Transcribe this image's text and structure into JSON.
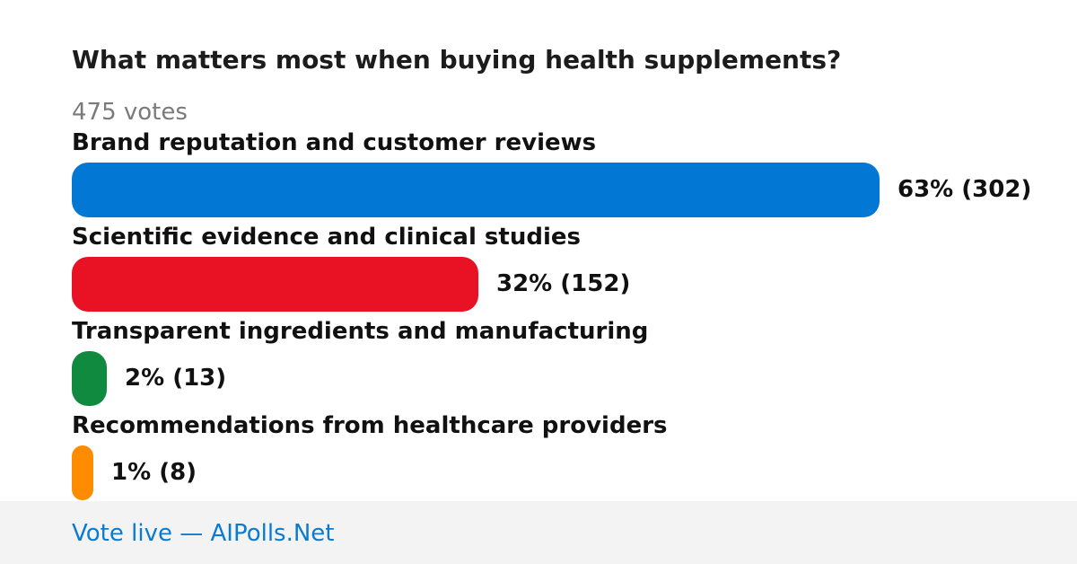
{
  "poll": {
    "question": "What matters most when buying health supplements?",
    "votes_text": "475 votes"
  },
  "chart_data": {
    "type": "bar",
    "orientation": "horizontal",
    "title": "What matters most when buying health supplements?",
    "total_votes": 475,
    "categories": [
      "Brand reputation and customer reviews",
      "Scientific evidence and clinical studies",
      "Transparent ingredients and manufacturing",
      "Recommendations from healthcare providers"
    ],
    "values": [
      302,
      152,
      13,
      8
    ],
    "percents": [
      63,
      32,
      2,
      1
    ],
    "value_labels": [
      "63% (302)",
      "32% (152)",
      "2% (13)",
      "1% (8)"
    ],
    "colors": [
      "#0277d4",
      "#e81224",
      "#0f8a3e",
      "#ff8b00"
    ],
    "grid": false,
    "legend": "none"
  },
  "footer": {
    "link_text": "Vote live — AIPolls.Net"
  }
}
